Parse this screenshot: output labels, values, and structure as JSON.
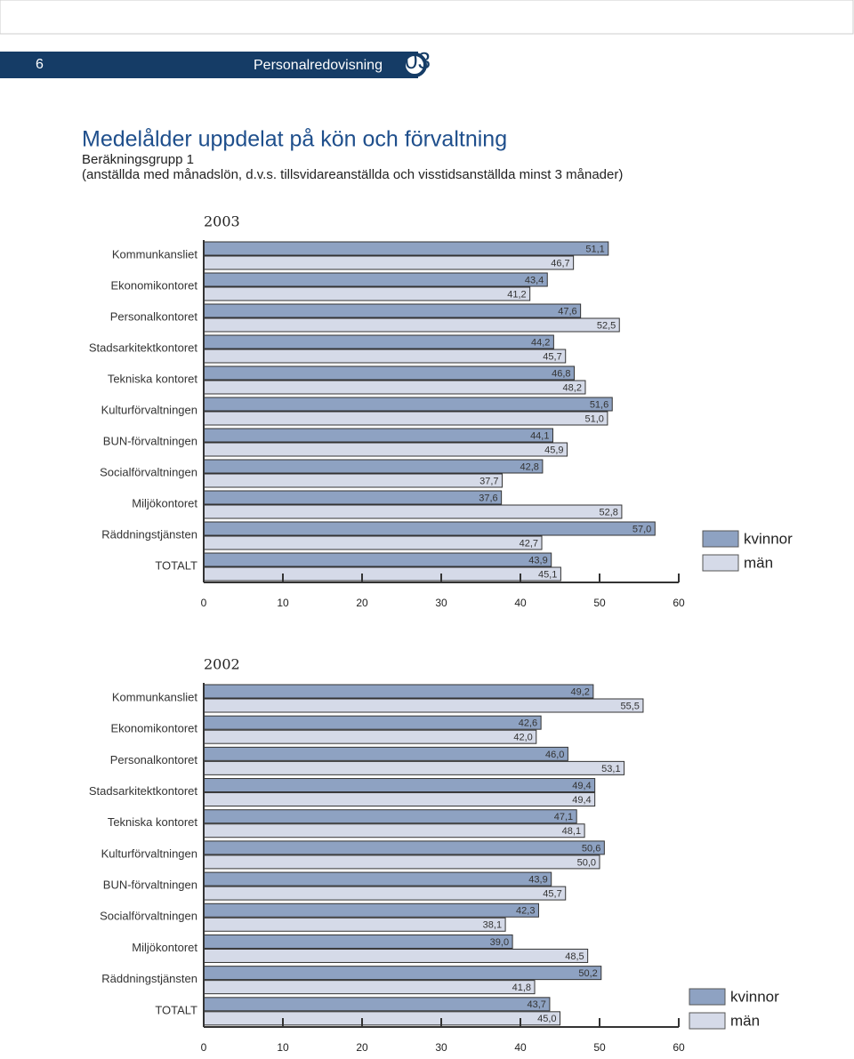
{
  "header": {
    "page_number": "6",
    "section": "Personalredovisning",
    "chapter": "03"
  },
  "title": "Medelålder uppdelat på kön och förvaltning",
  "subtitle": "Beräkningsgrupp 1",
  "note": "(anställda med månadslön, d.v.s. tillsvidareanställda och visstidsanställda minst 3 månader)",
  "chart_data": [
    {
      "type": "bar",
      "orientation": "horizontal",
      "title": "2003",
      "categories": [
        "Kommunkansliet",
        "Ekonomikontoret",
        "Personalkontoret",
        "Stadsarkitektkontoret",
        "Tekniska kontoret",
        "Kulturförvaltningen",
        "BUN-förvaltningen",
        "Socialförvaltningen",
        "Miljökontoret",
        "Räddningstjänsten",
        "TOTALT"
      ],
      "series": [
        {
          "name": "kvinnor",
          "color": "#8ea2c2",
          "values": [
            51.1,
            43.4,
            47.6,
            44.2,
            46.8,
            51.6,
            44.1,
            42.8,
            37.6,
            57.0,
            43.9
          ],
          "value_labels": [
            "51,1",
            "43,4",
            "47,6",
            "44,2",
            "46,8",
            "51,6",
            "44,1",
            "42,8",
            "37,6",
            "57,0",
            "43,9"
          ]
        },
        {
          "name": "män",
          "color": "#d5dae8",
          "values": [
            46.7,
            41.2,
            52.5,
            45.7,
            48.2,
            51.0,
            45.9,
            37.7,
            52.8,
            42.7,
            45.1
          ],
          "value_labels": [
            "46,7",
            "41,2",
            "52,5",
            "45,7",
            "48,2",
            "51,0",
            "45,9",
            "37,7",
            "52,8",
            "42,7",
            "45,1"
          ]
        }
      ],
      "xlim": [
        0,
        60
      ],
      "xticks": [
        0,
        10,
        20,
        30,
        40,
        50,
        60
      ],
      "legend": "right"
    },
    {
      "type": "bar",
      "orientation": "horizontal",
      "title": "2002",
      "categories": [
        "Kommunkansliet",
        "Ekonomikontoret",
        "Personalkontoret",
        "Stadsarkitektkontoret",
        "Tekniska kontoret",
        "Kulturförvaltningen",
        "BUN-förvaltningen",
        "Socialförvaltningen",
        "Miljökontoret",
        "Räddningstjänsten",
        "TOTALT"
      ],
      "series": [
        {
          "name": "kvinnor",
          "color": "#8ea2c2",
          "values": [
            49.2,
            42.6,
            46.0,
            49.4,
            47.1,
            50.6,
            43.9,
            42.3,
            39.0,
            50.2,
            43.7
          ],
          "value_labels": [
            "49,2",
            "42,6",
            "46,0",
            "49,4",
            "47,1",
            "50,6",
            "43,9",
            "42,3",
            "39,0",
            "50,2",
            "43,7"
          ]
        },
        {
          "name": "män",
          "color": "#d5dae8",
          "values": [
            55.5,
            42.0,
            53.1,
            49.4,
            48.1,
            50.0,
            45.7,
            38.1,
            48.5,
            41.8,
            45.0
          ],
          "value_labels": [
            "55,5",
            "42,0",
            "53,1",
            "49,4",
            "48,1",
            "50,0",
            "45,7",
            "38,1",
            "48,5",
            "41,8",
            "45,0"
          ]
        }
      ],
      "xlim": [
        0,
        60
      ],
      "xticks": [
        0,
        10,
        20,
        30,
        40,
        50,
        60
      ],
      "legend": "right"
    }
  ]
}
